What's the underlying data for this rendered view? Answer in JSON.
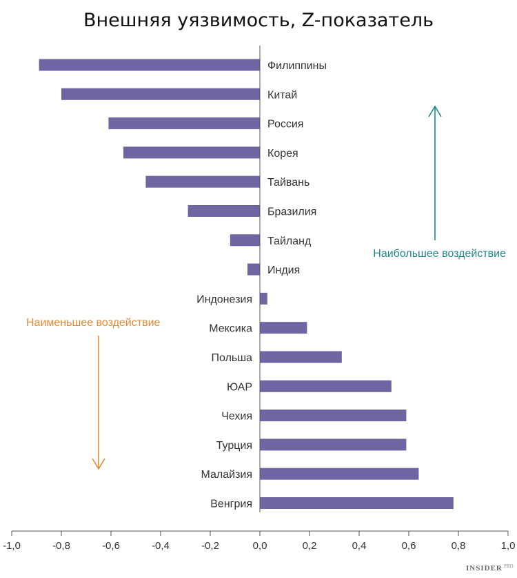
{
  "chart_data": {
    "type": "bar",
    "orientation": "horizontal",
    "title": "Внешняя уязвимость, Z-показатель",
    "categories": [
      "Филиппины",
      "Китай",
      "Россия",
      "Корея",
      "Тайвань",
      "Бразилия",
      "Тайланд",
      "Индия",
      "Индонезия",
      "Мексика",
      "Польша",
      "ЮАР",
      "Чехия",
      "Турция",
      "Малайзия",
      "Венгрия"
    ],
    "values": [
      -0.89,
      -0.8,
      -0.61,
      -0.55,
      -0.46,
      -0.29,
      -0.12,
      -0.05,
      0.03,
      0.19,
      0.33,
      0.53,
      0.59,
      0.59,
      0.64,
      0.78
    ],
    "xlim": [
      -1.0,
      1.0
    ],
    "xticks": [
      "-1,0",
      "-0,8",
      "-0,6",
      "-0,4",
      "-0,2",
      "0,0",
      "0,2",
      "0,4",
      "0,6",
      "0,8",
      "1,0"
    ],
    "xlabel": "",
    "ylabel": "",
    "grid": false,
    "annotations": {
      "up": "Наибольшее воздействие",
      "down": "Наименьшее воздействие"
    }
  },
  "colors": {
    "bar": "#6f65a3",
    "axis": "#555555",
    "up_arrow": "#1f8a8a",
    "down_arrow": "#e8892f"
  },
  "watermark": {
    "brand": "INSIDER",
    "suffix": "PRO"
  }
}
